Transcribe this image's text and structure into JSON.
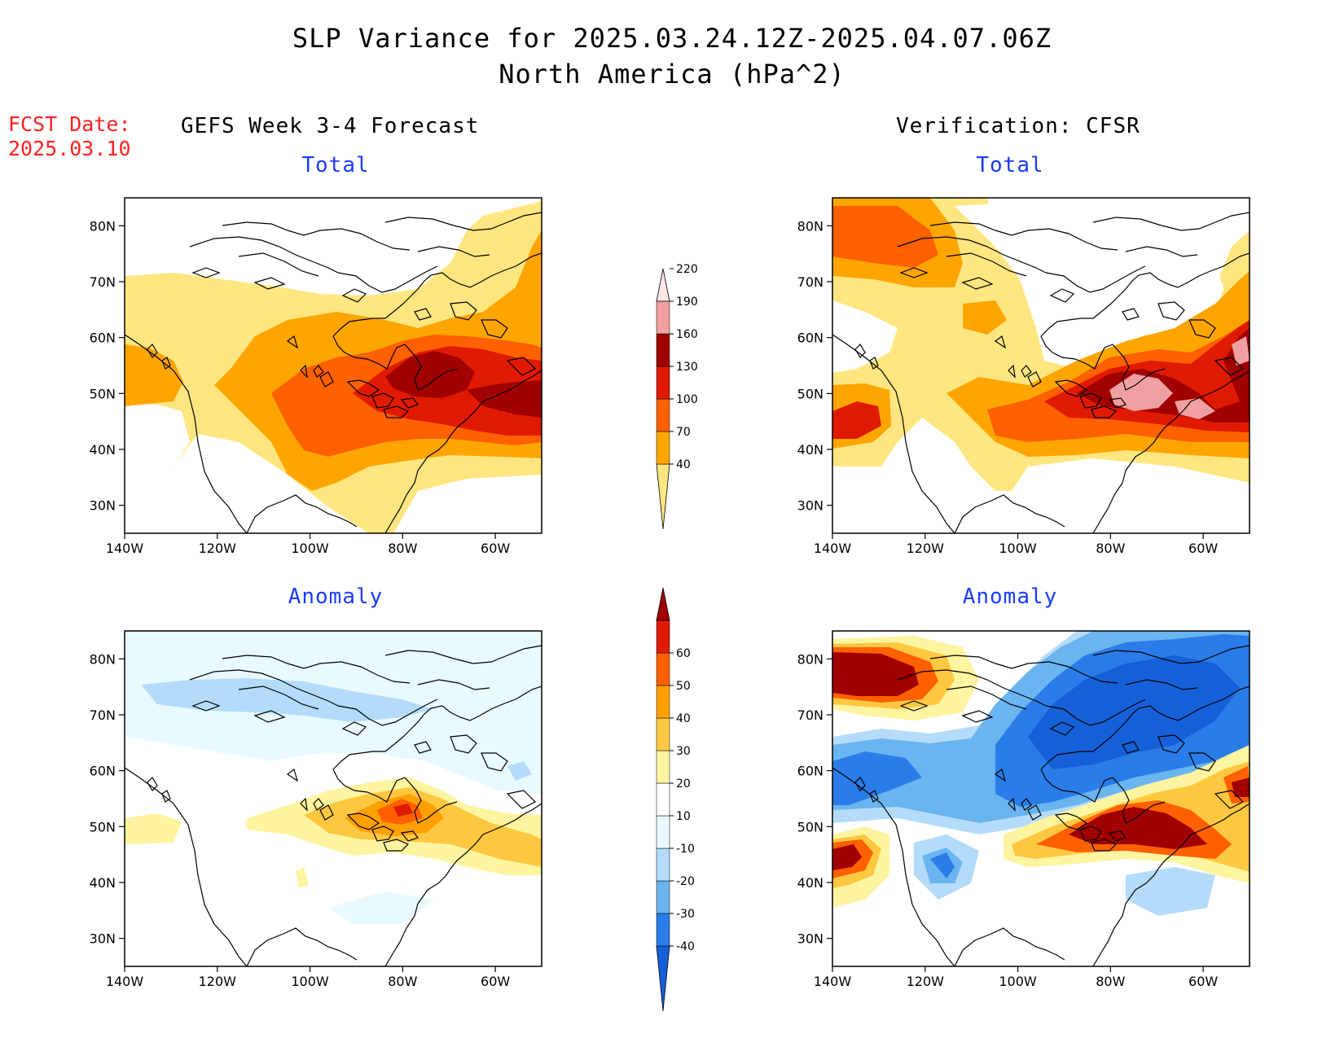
{
  "title": {
    "line1": "SLP Variance for 2025.03.24.12Z-2025.04.07.06Z",
    "line2": "North America (hPa^2)"
  },
  "fcst": {
    "label": "FCST Date:",
    "date": "2025.03.10"
  },
  "columns": {
    "left": "GEFS Week 3-4 Forecast",
    "right": "Verification: CFSR"
  },
  "panel_titles": {
    "total": "Total",
    "anomaly": "Anomaly"
  },
  "axes": {
    "lat_labels": [
      "80N",
      "70N",
      "60N",
      "50N",
      "40N",
      "30N"
    ],
    "lon_labels": [
      "140W",
      "120W",
      "100W",
      "80W",
      "60W"
    ]
  },
  "colorbars": {
    "total": {
      "levels": [
        "40",
        "70",
        "100",
        "130",
        "160",
        "190",
        "220"
      ],
      "colors": [
        "#ffe680",
        "#ffa500",
        "#ff6000",
        "#e01a00",
        "#a00000",
        "#f0a0a0",
        "#ffe6e6"
      ]
    },
    "anomaly": {
      "levels": [
        "-40",
        "-30",
        "-20",
        "-10",
        "10",
        "20",
        "30",
        "40",
        "50",
        "60"
      ],
      "colors": [
        "#1560d8",
        "#2a7ce8",
        "#6ab4f0",
        "#b4dcfa",
        "#e8faff",
        "#ffffff",
        "#fff4a0",
        "#ffc840",
        "#ffa000",
        "#ff6000",
        "#e01a00",
        "#a00000"
      ]
    }
  },
  "chart_data": [
    {
      "type": "heatmap",
      "panel": "GEFS Week 3-4 Forecast - Total",
      "units": "hPa^2",
      "lon_range": [
        -140,
        -50
      ],
      "lat_range": [
        25,
        85
      ],
      "features": [
        {
          "name": "max",
          "lon": -72,
          "lat": 52,
          "value": 175
        },
        {
          "name": "secondary",
          "lon": -52,
          "lat": 48,
          "value": 165
        },
        {
          "name": "west coast",
          "lon": -133,
          "lat": 50,
          "value": 75
        }
      ]
    },
    {
      "type": "heatmap",
      "panel": "Verification: CFSR - Total",
      "units": "hPa^2",
      "lon_range": [
        -140,
        -50
      ],
      "lat_range": [
        25,
        85
      ],
      "features": [
        {
          "name": "max",
          "lon": -72,
          "lat": 50,
          "value": 205
        },
        {
          "name": "secondary",
          "lon": -52,
          "lat": 56,
          "value": 195
        },
        {
          "name": "northwest",
          "lon": -135,
          "lat": 76,
          "value": 110
        },
        {
          "name": "pacific",
          "lon": -137,
          "lat": 44,
          "value": 135
        }
      ]
    },
    {
      "type": "heatmap",
      "panel": "GEFS Week 3-4 Forecast - Anomaly",
      "units": "hPa^2",
      "lon_range": [
        -140,
        -50
      ],
      "lat_range": [
        25,
        85
      ],
      "features": [
        {
          "name": "positive max",
          "lon": -80,
          "lat": 53,
          "value": 45
        },
        {
          "name": "negative arctic",
          "lon": -110,
          "lat": 72,
          "value": -25
        }
      ]
    },
    {
      "type": "heatmap",
      "panel": "Verification: CFSR - Anomaly",
      "units": "hPa^2",
      "lon_range": [
        -140,
        -50
      ],
      "lat_range": [
        25,
        85
      ],
      "features": [
        {
          "name": "positive east",
          "lon": -75,
          "lat": 48,
          "value": 65
        },
        {
          "name": "positive northwest",
          "lon": -130,
          "lat": 77,
          "value": 65
        },
        {
          "name": "positive pacific",
          "lon": -137,
          "lat": 43,
          "value": 65
        },
        {
          "name": "negative canada",
          "lon": -80,
          "lat": 70,
          "value": -45
        }
      ]
    }
  ]
}
